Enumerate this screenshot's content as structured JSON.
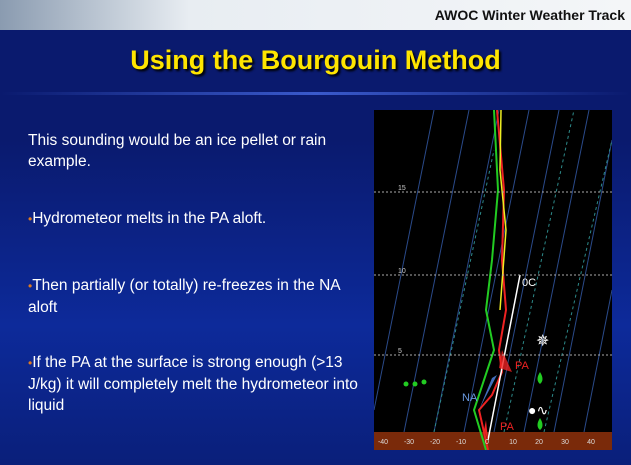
{
  "header": {
    "track": "AWOC Winter Weather Track",
    "title": "Using the Bourgouin Method"
  },
  "body": {
    "intro": "This sounding would be an ice pellet or rain example.",
    "bullets": [
      "Hydrometeor melts in the PA aloft.",
      "Then partially (or totally) re-freezes in the NA aloft",
      "If the PA at the surface is strong enough (>13 J/kg) it will completely melt the hydrometeor into liquid"
    ]
  },
  "sounding": {
    "y_labels": [
      "15",
      "10",
      "5"
    ],
    "x_labels": [
      "-40",
      "-30",
      "-20",
      "-10",
      "0",
      "10",
      "20",
      "30",
      "40"
    ],
    "freezing_label": "0C",
    "upper_pa": "PA",
    "na": "NA",
    "lower_pa": "PA"
  }
}
